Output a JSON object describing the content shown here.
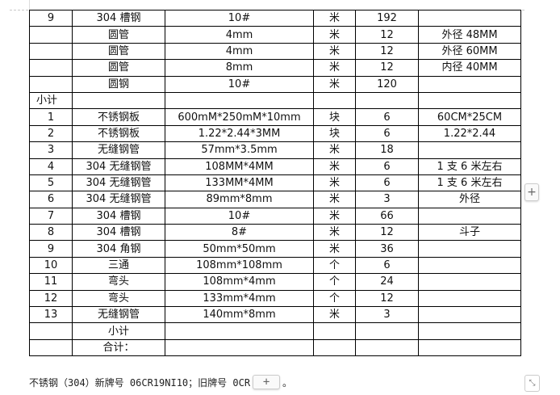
{
  "table": {
    "rows": [
      [
        "9",
        "304 槽钢",
        "10#",
        "米",
        "192",
        ""
      ],
      [
        "",
        "圆管",
        "4mm",
        "米",
        "12",
        "外径 48MM"
      ],
      [
        "",
        "圆管",
        "4mm",
        "米",
        "12",
        "外径 60MM"
      ],
      [
        "",
        "圆管",
        "8mm",
        "米",
        "12",
        "内径 40MM"
      ],
      [
        "",
        "圆钢",
        "10#",
        "米",
        "120",
        ""
      ],
      [
        "小计",
        "",
        "",
        "",
        "",
        ""
      ],
      [
        "1",
        "不锈钢板",
        "600mM*250mM*10mm",
        "块",
        "6",
        "60CM*25CM"
      ],
      [
        "2",
        "不锈钢板",
        "1.22*2.44*3MM",
        "块",
        "6",
        "1.22*2.44"
      ],
      [
        "3",
        "无缝钢管",
        "57mm*3.5mm",
        "米",
        "18",
        ""
      ],
      [
        "4",
        "304 无缝钢管",
        "108MM*4MM",
        "米",
        "6",
        "1 支 6 米左右"
      ],
      [
        "5",
        "304 无缝钢管",
        "133MM*4MM",
        "米",
        "6",
        "1 支 6 米左右"
      ],
      [
        "6",
        "304 无缝钢管",
        "89mm*8mm",
        "米",
        "3",
        "外径"
      ],
      [
        "7",
        "304 槽钢",
        "10#",
        "米",
        "66",
        ""
      ],
      [
        "8",
        "304 槽钢",
        "8#",
        "米",
        "12",
        "斗子"
      ],
      [
        "9",
        "304 角钢",
        "50mm*50mm",
        "米",
        "36",
        ""
      ],
      [
        "10",
        "三通",
        "108mm*108mm",
        "个",
        "6",
        ""
      ],
      [
        "11",
        "弯头",
        "108mm*4mm",
        "个",
        "24",
        ""
      ],
      [
        "12",
        "弯头",
        "133mm*4mm",
        "个",
        "12",
        ""
      ],
      [
        "13",
        "无缝钢管",
        "140mm*8mm",
        "米",
        "3",
        ""
      ],
      [
        "",
        "小计",
        "",
        "",
        "",
        ""
      ],
      [
        "",
        "合计：",
        "",
        "",
        "",
        ""
      ]
    ]
  },
  "note": "不锈钢（304）新牌号 06CR19NI10；旧牌号 0CR",
  "note_end": "。",
  "buttons": {
    "add_column": "+",
    "add_row": "+",
    "resize": "⤡"
  }
}
